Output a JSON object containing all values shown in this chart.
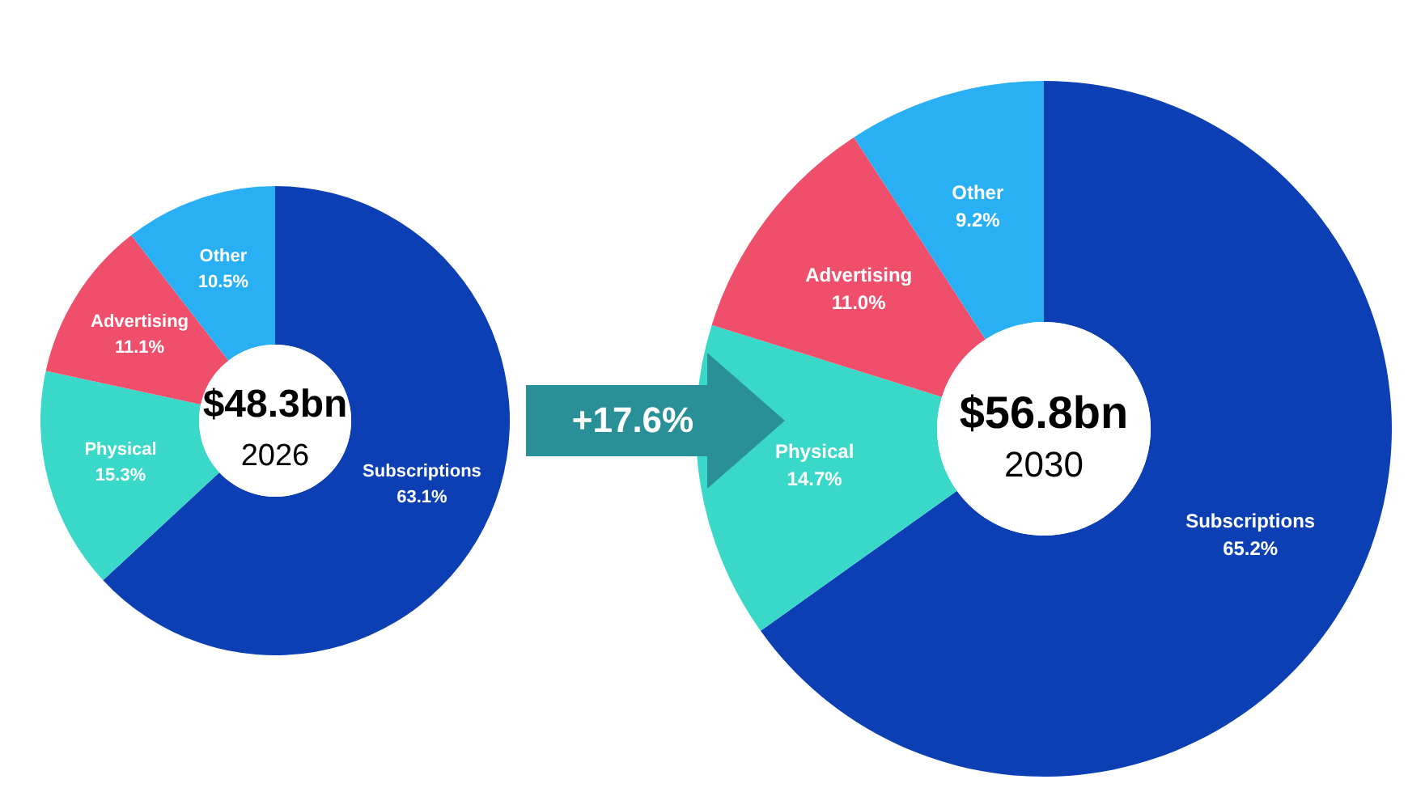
{
  "chart_data": [
    {
      "type": "donut",
      "title": "$48.3bn",
      "subtitle": "2026",
      "categories": [
        "Subscriptions",
        "Physical",
        "Advertising",
        "Other"
      ],
      "values": [
        63.1,
        15.3,
        11.1,
        10.5
      ],
      "value_labels": [
        "63.1%",
        "15.3%",
        "11.1%",
        "10.5%"
      ],
      "colors": [
        "#0b3fb3",
        "#3ad8c8",
        "#f04f6c",
        "#29b0f4"
      ],
      "legend": false,
      "annotations": [
        "+17.6%"
      ]
    },
    {
      "type": "donut",
      "title": "$56.8bn",
      "subtitle": "2030",
      "categories": [
        "Subscriptions",
        "Physical",
        "Advertising",
        "Other"
      ],
      "values": [
        65.2,
        14.7,
        11.0,
        9.2
      ],
      "value_labels": [
        "65.2%",
        "14.7%",
        "11.0%",
        "9.2%"
      ],
      "colors": [
        "#0b3fb3",
        "#3ad8c8",
        "#f04f6c",
        "#29b0f4"
      ],
      "legend": false
    }
  ]
}
